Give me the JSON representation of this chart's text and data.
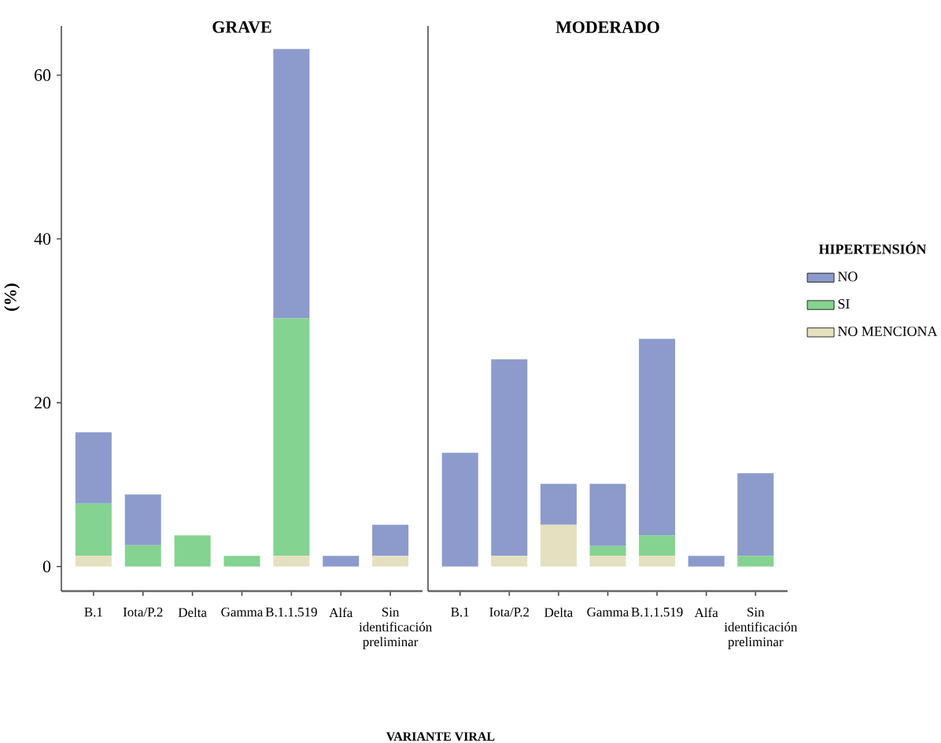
{
  "chart_data": [
    {
      "type": "bar",
      "title": "GRAVE",
      "xlabel": "VARIANTE VIRAL",
      "ylabel": "(%)",
      "stacked": true,
      "categories": [
        "B.1",
        "Iota/P.2",
        "Delta",
        "Gamma",
        "B.1.1.519",
        "Alfa",
        "Sin identificación preliminar"
      ],
      "series": [
        {
          "color": "#e5e0c0",
          "values": [
            1.3,
            0,
            0,
            0,
            1.3,
            0,
            1.3
          ]
        },
        {
          "color": "#84d391",
          "values": [
            6.4,
            2.6,
            3.8,
            1.3,
            29.0,
            0,
            0
          ]
        },
        {
          "color": "#8c9bcc",
          "values": [
            8.7,
            6.2,
            0,
            0,
            32.9,
            1.3,
            3.8
          ]
        }
      ],
      "ylim": [
        -3,
        66
      ],
      "yticks": [
        0,
        20,
        40,
        60
      ]
    },
    {
      "type": "bar",
      "title": "MODERADO",
      "stacked": true,
      "legend": "right",
      "legend_title": "HIPERTENSIÓN",
      "tick_labels": "x",
      "categories": [
        "B.1",
        "Iota/P.2",
        "Delta",
        "Gamma",
        "B.1.1.519",
        "Alfa",
        "Sin identificación preliminar"
      ],
      "series": [
        {
          "name": "NO MENCIONA",
          "color": "#e5e0c0",
          "values": [
            0,
            1.3,
            5.1,
            1.3,
            1.3,
            0,
            0
          ]
        },
        {
          "name": "SI",
          "color": "#84d391",
          "values": [
            0,
            0,
            0,
            1.2,
            2.5,
            0,
            1.3
          ]
        },
        {
          "name": "NO",
          "color": "#8c9bcc",
          "values": [
            13.9,
            24.0,
            5.0,
            7.6,
            24.0,
            1.3,
            10.1
          ]
        }
      ],
      "ylim": [
        -3,
        66
      ],
      "yticks": [
        0,
        20,
        40,
        60
      ]
    }
  ]
}
